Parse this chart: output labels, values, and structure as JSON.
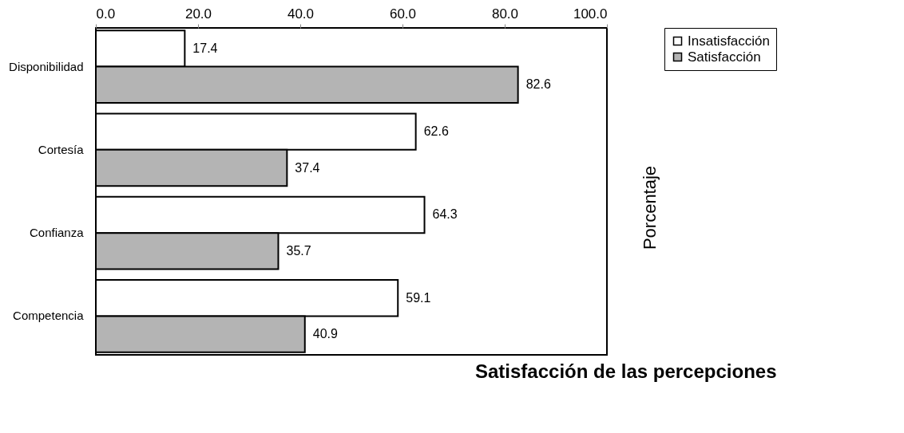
{
  "chart_data": {
    "type": "bar",
    "orientation": "horizontal",
    "title": "Satisfacción de las percepciones",
    "ylabel": "Porcentaje",
    "categories": [
      "Disponibilidad",
      "Cortesía",
      "Confianza",
      "Competencia"
    ],
    "series": [
      {
        "name": "Insatisfacción",
        "color": "#ffffff",
        "values": [
          17.4,
          62.6,
          64.3,
          59.1
        ]
      },
      {
        "name": "Satisfacción",
        "color": "#b4b4b4",
        "values": [
          82.6,
          37.4,
          35.7,
          40.9
        ]
      }
    ],
    "xlim": [
      0,
      100
    ],
    "xticks": [
      {
        "value": 0,
        "label": "0.0"
      },
      {
        "value": 20,
        "label": "20.0"
      },
      {
        "value": 40,
        "label": "40.0"
      },
      {
        "value": 60,
        "label": "60.0"
      },
      {
        "value": 80,
        "label": "80.0"
      },
      {
        "value": 100,
        "label": "100.0"
      }
    ],
    "data_labels": true,
    "legend": "top right",
    "grid": false
  }
}
